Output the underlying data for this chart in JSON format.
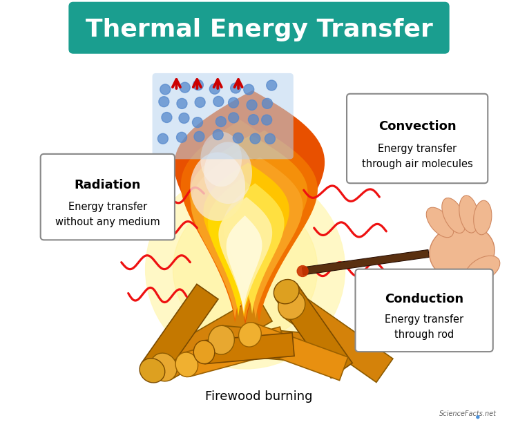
{
  "title": "Thermal Energy Transfer",
  "title_bg_color": "#1a9e8f",
  "title_text_color": "#ffffff",
  "title_fontsize": 26,
  "bg_color": "#ffffff",
  "box_edge_color": "#888888",
  "box_bg_color": "#ffffff",
  "radiation_title": "Radiation",
  "radiation_body": "Energy transfer\nwithout any medium",
  "convection_title": "Convection",
  "convection_body": "Energy transfer\nthrough air molecules",
  "conduction_title": "Conduction",
  "conduction_body": "Energy transfer\nthrough rod",
  "caption": "Firewood burning",
  "caption_fontsize": 13,
  "wave_color": "#ee1111",
  "arrow_color": "#cc0000",
  "molecule_color": "#b8d4f0",
  "molecule_dot_color": "#5588cc"
}
